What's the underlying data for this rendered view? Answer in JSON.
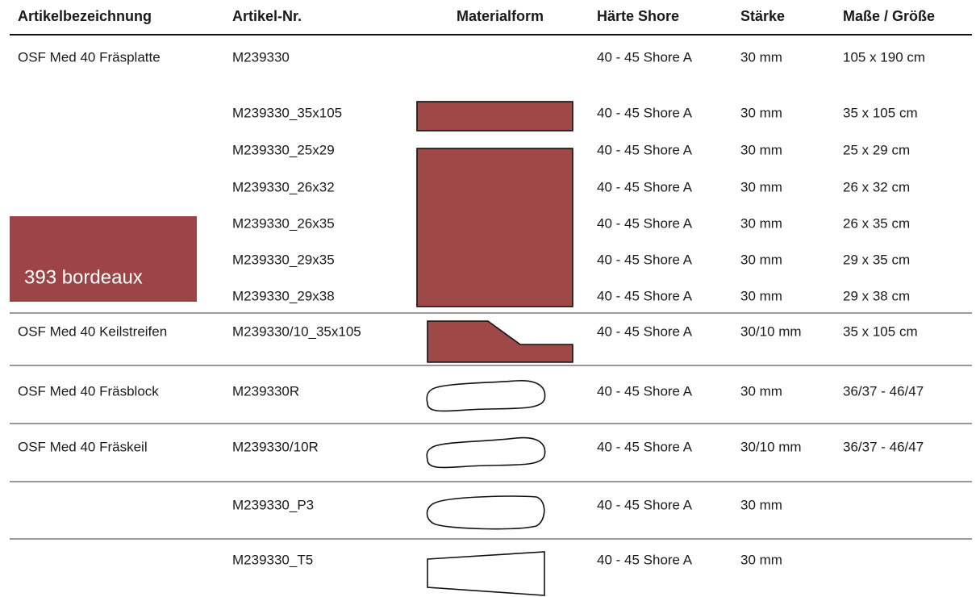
{
  "header": [
    "Artikelbezeichnung",
    "Artikel-Nr.",
    "Materialform",
    "Härte Shore",
    "Stärke",
    "Maße / Größe"
  ],
  "swatch": "393 bordeaux",
  "rows": [
    {
      "name": "OSF Med 40 Fräsplatte",
      "number": "M239330",
      "hardness": "40 - 45 Shore A",
      "thickness": "30 mm",
      "size": "105 x 190 cm"
    },
    {
      "number": "M239330_35x105",
      "hardness": "40 - 45 Shore A",
      "thickness": "30 mm",
      "size": "35 x 105 cm"
    },
    {
      "number": "M239330_25x29",
      "hardness": "40 - 45 Shore A",
      "thickness": "30 mm",
      "size": "25 x 29 cm"
    },
    {
      "number": "M239330_26x32",
      "hardness": "40 - 45 Shore A",
      "thickness": "30 mm",
      "size": "26 x 32 cm"
    },
    {
      "number": "M239330_26x35",
      "hardness": "40 - 45 Shore A",
      "thickness": "30 mm",
      "size": "26 x 35 cm"
    },
    {
      "number": "M239330_29x35",
      "hardness": "40 - 45 Shore A",
      "thickness": "30 mm",
      "size": "29 x 35 cm"
    },
    {
      "number": "M239330_29x38",
      "hardness": "40 - 45 Shore A",
      "thickness": "30 mm",
      "size": "29 x 38 cm"
    },
    {
      "name": "OSF Med 40 Keilstreifen",
      "number": "M239330/10_35x105",
      "hardness": "40 - 45 Shore A",
      "thickness": "30/10 mm",
      "size": "35 x 105 cm"
    },
    {
      "name": "OSF Med 40 Fräsblock",
      "number": "M239330R",
      "hardness": "40 - 45 Shore A",
      "thickness": "30 mm",
      "size": "36/37 - 46/47"
    },
    {
      "name": "OSF Med 40 Fräskeil",
      "number": "M239330/10R",
      "hardness": "40 - 45 Shore A",
      "thickness": "30/10 mm",
      "size": "36/37 - 46/47"
    },
    {
      "number": "M239330_P3",
      "hardness": "40 - 45 Shore A",
      "thickness": "30 mm"
    },
    {
      "number": "M239330_T5",
      "hardness": "40 - 45 Shore A",
      "thickness": "30 mm"
    }
  ]
}
